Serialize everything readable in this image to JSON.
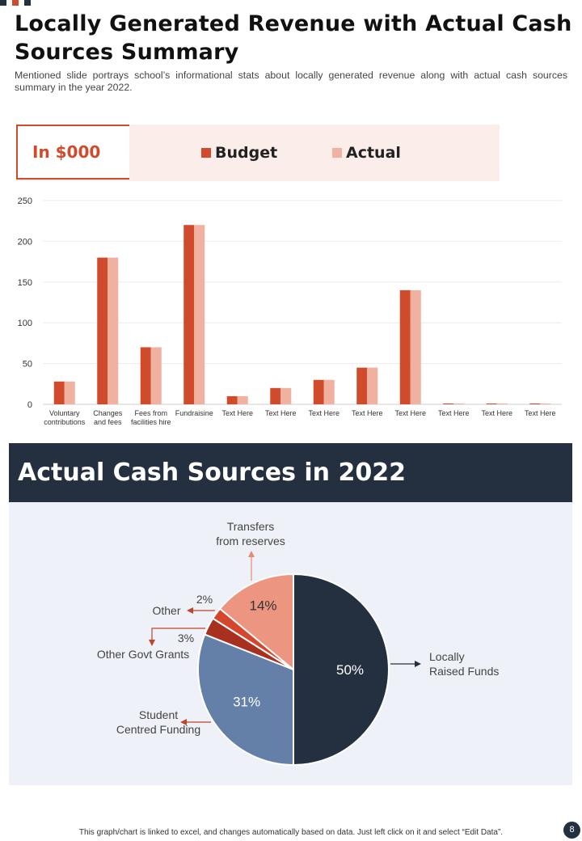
{
  "colors": {
    "budget": "#d04a2c",
    "actual": "#f0b1a1",
    "navy": "#243040",
    "slate_blue": "#6580a8",
    "salmon": "#ec9580",
    "dark_red": "#a8301e",
    "red": "#d5462c",
    "panel_bg": "#eef1f7",
    "legend_bg": "#fbeeea"
  },
  "header": {
    "title": "Locally Generated Revenue with Actual Cash Sources Summary",
    "subtitle": "Mentioned slide portrays school’s informational stats about locally generated revenue along with actual cash sources summary in the year 2022."
  },
  "legend": {
    "unit": "In $000",
    "budget_label": "Budget",
    "actual_label": "Actual"
  },
  "section": {
    "title": "Actual Cash Sources in 2022"
  },
  "footer": {
    "note": "This graph/chart is linked to excel, and changes automatically based on data. Just left click on it and select “Edit Data”.",
    "page_number": "8"
  },
  "chart_data": [
    {
      "type": "bar",
      "categories": [
        [
          "Voluntary",
          "contributions"
        ],
        [
          "Changes",
          "and fees"
        ],
        [
          "Fees from",
          "facilities hire"
        ],
        [
          "Fundraisine"
        ],
        [
          "Text Here"
        ],
        [
          "Text Here"
        ],
        [
          "Text Here"
        ],
        [
          "Text Here"
        ],
        [
          "Text Here"
        ],
        [
          "Text Here"
        ],
        [
          "Text Here"
        ],
        [
          "Text Here"
        ]
      ],
      "series": [
        {
          "name": "Budget",
          "values": [
            28,
            180,
            70,
            220,
            10,
            20,
            30,
            45,
            140,
            1,
            1,
            1
          ]
        },
        {
          "name": "Actual",
          "values": [
            28,
            180,
            70,
            220,
            10,
            20,
            30,
            45,
            140,
            1,
            1,
            1
          ]
        }
      ],
      "ylim": [
        0,
        250
      ],
      "yticks": [
        0,
        50,
        100,
        150,
        200,
        250
      ],
      "grid": true
    },
    {
      "type": "pie",
      "slices": [
        {
          "label": "Locally Raised Funds",
          "value": 50,
          "display": "50%",
          "color": "#243040"
        },
        {
          "label": "Student Centred Funding",
          "value": 31,
          "display": "31%",
          "color": "#6580a8"
        },
        {
          "label": "Other Govt Grants",
          "value": 3,
          "display": "3%",
          "color": "#a8301e"
        },
        {
          "label": "Other",
          "value": 2,
          "display": "2%",
          "color": "#d5462c"
        },
        {
          "label": "Transfers from reserves",
          "value": 14,
          "display": "14%",
          "color": "#ec9580"
        }
      ],
      "callouts": {
        "locally": [
          "Locally",
          "Raised Funds"
        ],
        "student": [
          "Student",
          "Centred Funding"
        ],
        "grants": [
          "Other Govt Grants"
        ],
        "other": [
          "Other"
        ],
        "transfers": [
          "Transfers",
          "from reserves"
        ]
      }
    }
  ]
}
